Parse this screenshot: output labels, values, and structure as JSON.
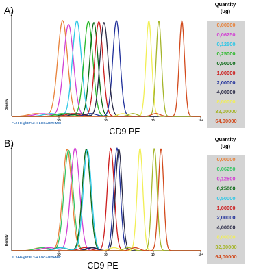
{
  "colors": {
    "legend_bg": "#d4d4d4",
    "axis": "#000000",
    "axis_caption": "#2a6db5"
  },
  "legend": {
    "title_line1": "Quantity",
    "title_line2": "(ug)"
  },
  "chart_data": [
    {
      "type": "line",
      "panel_label": "A)",
      "xlabel": "CD9 PE",
      "ylabel": "Density",
      "axis_caption": "FL2-Height:FL2-H LOGARITHMIC",
      "x_scale": "log",
      "xlim": [
        1,
        10000
      ],
      "ylim": [
        0,
        1
      ],
      "x_ticks": [
        "10¹",
        "10²",
        "10³",
        "10⁴"
      ],
      "grid": false,
      "legend_position": "right",
      "series": [
        {
          "name": "0,00000",
          "color": "#e8823a",
          "peak_x": 12,
          "width_decades": 0.24,
          "peak": 0.98
        },
        {
          "name": "0,06250",
          "color": "#d23fd3",
          "peak_x": 16,
          "width_decades": 0.24,
          "peak": 0.94
        },
        {
          "name": "0,12500",
          "color": "#2ec7e6",
          "peak_x": 24,
          "width_decades": 0.22,
          "peak": 0.98
        },
        {
          "name": "0,25000",
          "color": "#28b828",
          "peak_x": 42,
          "width_decades": 0.22,
          "peak": 0.97
        },
        {
          "name": "0,50000",
          "color": "#0a6a16",
          "peak_x": 55,
          "width_decades": 0.2,
          "peak": 0.96
        },
        {
          "name": "1,00000",
          "color": "#cc1c1c",
          "peak_x": 70,
          "width_decades": 0.2,
          "peak": 0.97
        },
        {
          "name": "2,00000",
          "color": "#1f2f9a",
          "peak_x": 165,
          "width_decades": 0.18,
          "peak": 0.98
        },
        {
          "name": "4,00000",
          "color": "#2a2a46",
          "peak_x": 90,
          "width_decades": 0.2,
          "peak": 0.96
        },
        {
          "name": "8,00000",
          "color": "#f2ef55",
          "peak_x": 800,
          "width_decades": 0.14,
          "peak": 0.98
        },
        {
          "name": "32,00000",
          "color": "#a5b52a",
          "peak_x": 1300,
          "width_decades": 0.13,
          "peak": 0.98
        },
        {
          "name": "64,00000",
          "color": "#d24a1c",
          "peak_x": 4000,
          "width_decades": 0.13,
          "peak": 0.98
        }
      ]
    },
    {
      "type": "line",
      "panel_label": "B)",
      "xlabel": "CD9 PE",
      "ylabel": "Density",
      "axis_caption": "FL2-Height:FL2-H LOGARITHMIC",
      "x_scale": "log",
      "xlim": [
        1,
        10000
      ],
      "ylim": [
        0,
        1
      ],
      "x_ticks": [
        "10¹",
        "10²",
        "10³",
        "10⁴"
      ],
      "grid": false,
      "legend_position": "right",
      "series": [
        {
          "name": "0,00000",
          "color": "#e8823a",
          "peak_x": 15,
          "width_decades": 0.22,
          "peak": 0.97
        },
        {
          "name": "0,06250",
          "color": "#36c463",
          "peak_x": 16,
          "width_decades": 0.22,
          "peak": 0.96
        },
        {
          "name": "0,12500",
          "color": "#d23fd3",
          "peak_x": 22,
          "width_decades": 0.22,
          "peak": 0.98
        },
        {
          "name": "0,25000",
          "color": "#0a6a16",
          "peak_x": 38,
          "width_decades": 0.2,
          "peak": 0.97
        },
        {
          "name": "0,50000",
          "color": "#2ec7e6",
          "peak_x": 40,
          "width_decades": 0.2,
          "peak": 0.96
        },
        {
          "name": "1,00000",
          "color": "#cc1c1c",
          "peak_x": 125,
          "width_decades": 0.17,
          "peak": 0.98
        },
        {
          "name": "2,00000",
          "color": "#1f2f9a",
          "peak_x": 170,
          "width_decades": 0.16,
          "peak": 0.98
        },
        {
          "name": "4,00000",
          "color": "#2a2a46",
          "peak_x": 185,
          "width_decades": 0.16,
          "peak": 0.97
        },
        {
          "name": "8,00000",
          "color": "#f2ef55",
          "peak_x": 520,
          "width_decades": 0.14,
          "peak": 0.98
        },
        {
          "name": "32,00000",
          "color": "#a5b52a",
          "peak_x": 1050,
          "width_decades": 0.13,
          "peak": 0.98
        },
        {
          "name": "64,00000",
          "color": "#d24a1c",
          "peak_x": 1450,
          "width_decades": 0.13,
          "peak": 0.98
        }
      ]
    }
  ]
}
